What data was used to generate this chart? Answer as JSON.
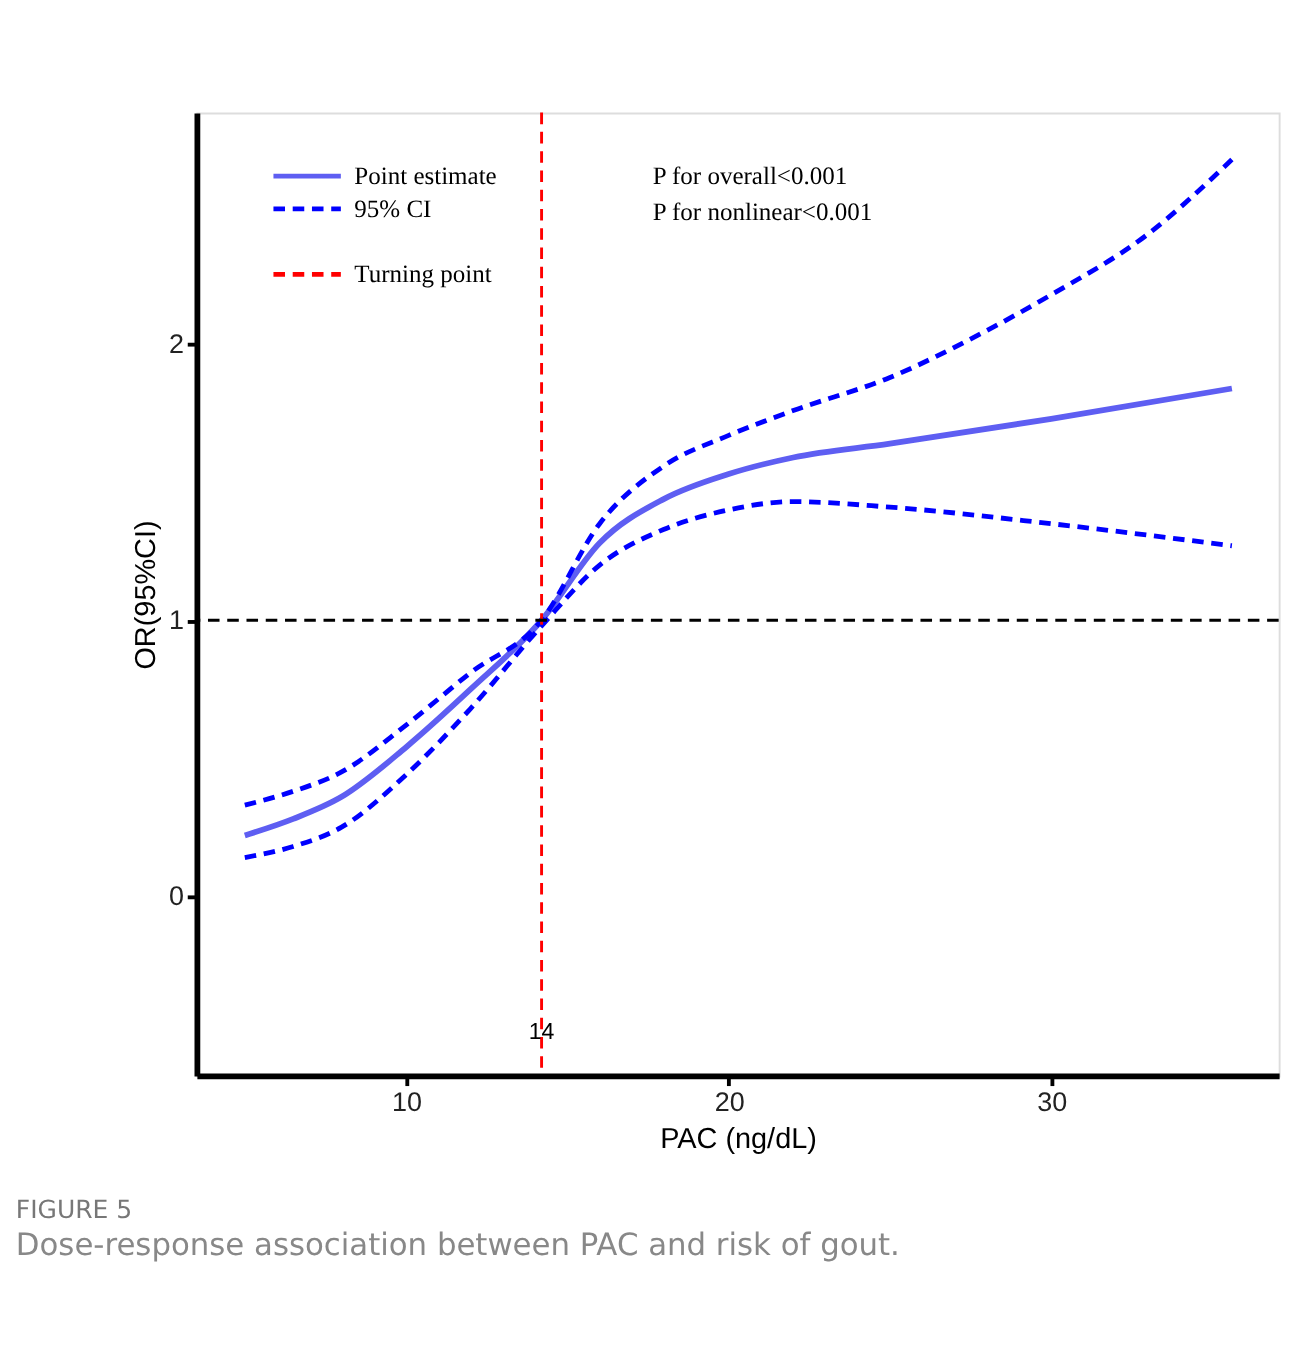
{
  "chart_data": {
    "type": "line",
    "xlabel": "PAC (ng/dL)",
    "ylabel": "OR(95%CI)",
    "xlim": [
      3.5,
      37.05
    ],
    "ylim": [
      -0.65,
      2.84
    ],
    "xticks": [
      10,
      20,
      30
    ],
    "yticks": [
      0,
      1,
      2
    ],
    "grid": false,
    "legend": "top left",
    "series": [
      {
        "name": "Point estimate",
        "color": "#5e5ef2",
        "line_style": "solid",
        "x": [
          5,
          6.5,
          8,
          10,
          12,
          14.2,
          16,
          18,
          20,
          22,
          25,
          30,
          35.6
        ],
        "values": [
          0.22,
          0.28,
          0.36,
          0.54,
          0.75,
          1.0,
          1.28,
          1.44,
          1.53,
          1.59,
          1.64,
          1.73,
          1.84
        ]
      },
      {
        "name": "95% CI",
        "color": "#0000ff",
        "line_style": "dashed",
        "x": [
          5,
          6.5,
          8,
          10,
          12,
          14.2,
          16,
          18,
          20,
          22,
          25,
          28,
          30,
          33,
          35.6
        ],
        "values": [
          0.33,
          0.38,
          0.45,
          0.62,
          0.81,
          1.0,
          1.35,
          1.56,
          1.67,
          1.76,
          1.88,
          2.05,
          2.18,
          2.4,
          2.67
        ]
      },
      {
        "color": "#0000ff",
        "line_style": "dashed",
        "x": [
          5,
          6.5,
          8,
          10,
          12,
          14.2,
          16,
          18,
          20,
          22,
          25,
          30,
          35.6
        ],
        "values": [
          0.14,
          0.18,
          0.25,
          0.44,
          0.68,
          0.98,
          1.2,
          1.33,
          1.4,
          1.43,
          1.41,
          1.35,
          1.27
        ]
      }
    ],
    "ref_lines": [
      {
        "axis": "x",
        "value": 14.2,
        "label": "Turning point",
        "color": "#ff0000",
        "line_style": "dashed"
      },
      {
        "axis": "y",
        "value": 1,
        "color": "#000000",
        "line_style": "dashed"
      }
    ],
    "annotations": [
      {
        "text": "14",
        "x": 14.2,
        "y": -0.49
      },
      "P for overall<0.001",
      "P for nonlinear<0.001",
      "FIGURE 5",
      "Dose-response association between PAC and risk of gout."
    ]
  }
}
